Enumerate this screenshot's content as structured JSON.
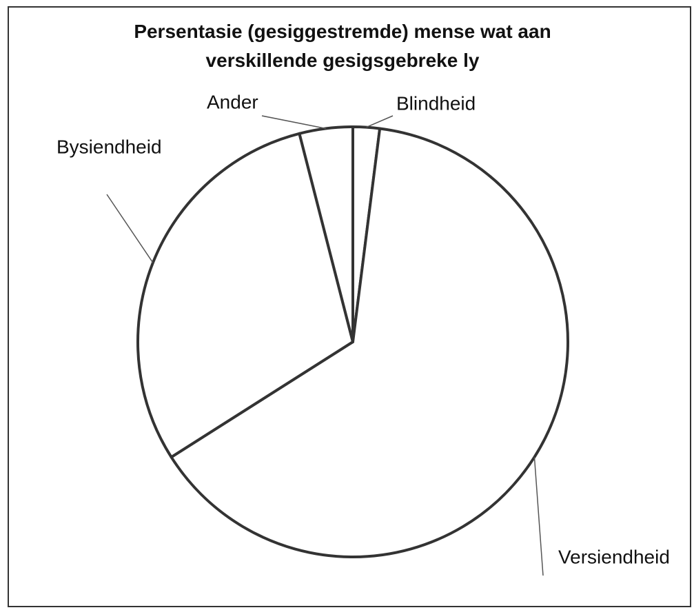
{
  "chart_data": {
    "type": "pie",
    "title": "Persentasie (gesiggestremde) mense wat aan verskillende gesigsgebreke ly",
    "categories": [
      "Blindheid",
      "Versiendheid",
      "Bysiendheid",
      "Ander"
    ],
    "values": [
      2,
      64,
      30,
      4
    ],
    "color": "#ffffff"
  }
}
